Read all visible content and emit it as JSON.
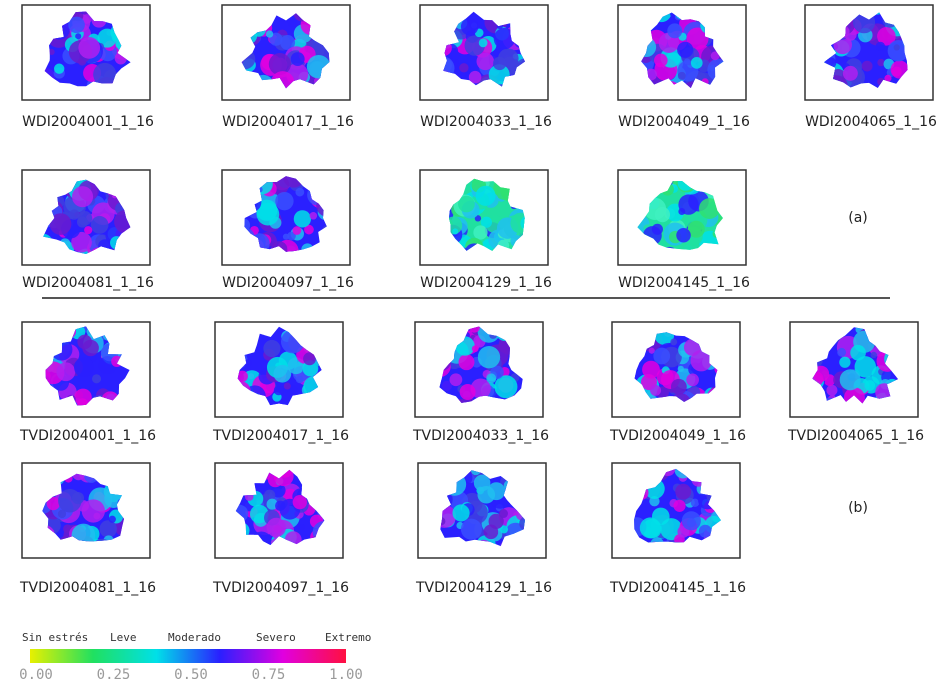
{
  "panel_a": {
    "label": "(a)",
    "images": [
      "WDI2004001_1_16",
      "WDI2004017_1_16",
      "WDI2004033_1_16",
      "WDI2004049_1_16",
      "WDI2004065_1_16",
      "WDI2004081_1_16",
      "WDI2004097_1_16",
      "WDI2004129_1_16",
      "WDI2004145_1_16"
    ]
  },
  "panel_b": {
    "label": "(b)",
    "images": [
      "TVDI2004001_1_16",
      "TVDI2004017_1_16",
      "TVDI2004033_1_16",
      "TVDI2004049_1_16",
      "TVDI2004065_1_16",
      "TVDI2004081_1_16",
      "TVDI2004097_1_16",
      "TVDI2004129_1_16",
      "TVDI2004145_1_16"
    ]
  },
  "legend": {
    "classes": [
      "Sin estrés",
      "Leve",
      "Moderado",
      "Severo",
      "Extremo"
    ],
    "ticks": [
      "0.00",
      "0.25",
      "0.50",
      "0.75",
      "1.00"
    ]
  }
}
